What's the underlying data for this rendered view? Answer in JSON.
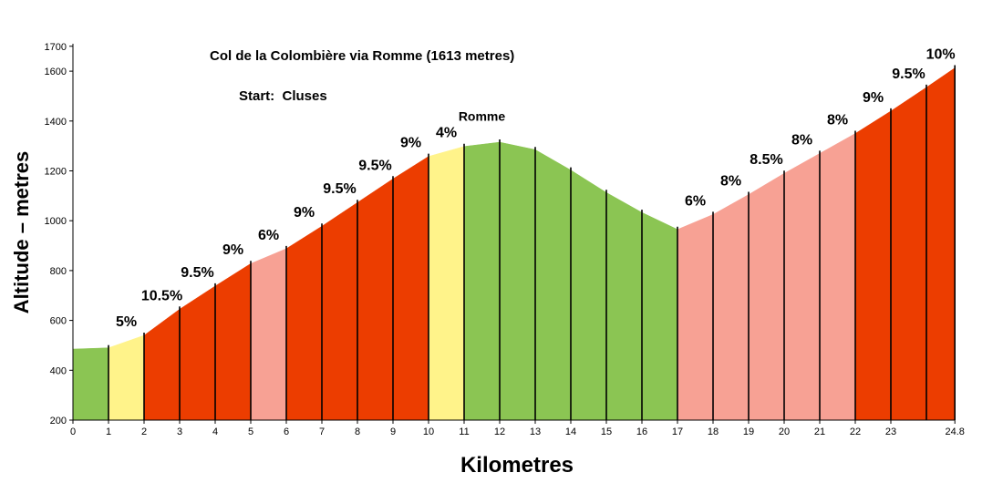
{
  "chart_data": {
    "type": "area",
    "title": "Col de la Colombière via Romme (1613 metres)",
    "subtitle": "Start:  Cluses",
    "xlabel": "Kilometres",
    "ylabel": "Altitude – metres",
    "ylim": [
      200,
      1700
    ],
    "xlim": [
      0,
      24.8
    ],
    "y_ticks": [
      200,
      400,
      600,
      800,
      1000,
      1200,
      1400,
      1600,
      1700
    ],
    "x_ticks": [
      {
        "value": 0,
        "label": "0"
      },
      {
        "value": 1,
        "label": "1"
      },
      {
        "value": 2,
        "label": "2"
      },
      {
        "value": 3,
        "label": "3"
      },
      {
        "value": 4,
        "label": "4"
      },
      {
        "value": 5,
        "label": "5"
      },
      {
        "value": 6,
        "label": "6"
      },
      {
        "value": 7,
        "label": "7"
      },
      {
        "value": 8,
        "label": "8"
      },
      {
        "value": 9,
        "label": "9"
      },
      {
        "value": 10,
        "label": "10"
      },
      {
        "value": 11,
        "label": "11"
      },
      {
        "value": 12,
        "label": "12"
      },
      {
        "value": 13,
        "label": "13"
      },
      {
        "value": 14,
        "label": "14"
      },
      {
        "value": 15,
        "label": "15"
      },
      {
        "value": 16,
        "label": "16"
      },
      {
        "value": 17,
        "label": "17"
      },
      {
        "value": 18,
        "label": "18"
      },
      {
        "value": 19,
        "label": "19"
      },
      {
        "value": 20,
        "label": "20"
      },
      {
        "value": 21,
        "label": "21"
      },
      {
        "value": 22,
        "label": "22"
      },
      {
        "value": 23,
        "label": "23"
      },
      {
        "value": 24.8,
        "label": "24.8"
      }
    ],
    "grid": false,
    "colors": {
      "green": "#8bc553",
      "yellow": "#fff38a",
      "pink": "#f7a194",
      "red": "#ec3d00"
    },
    "segments": [
      {
        "x0": 0,
        "x1": 1,
        "y0": 485,
        "y1": 490,
        "label": "",
        "color": "green"
      },
      {
        "x0": 1,
        "x1": 2,
        "y0": 490,
        "y1": 540,
        "label": "5%",
        "color": "yellow"
      },
      {
        "x0": 2,
        "x1": 3,
        "y0": 540,
        "y1": 645,
        "label": "10.5%",
        "color": "red"
      },
      {
        "x0": 3,
        "x1": 4,
        "y0": 645,
        "y1": 738,
        "label": "9.5%",
        "color": "red"
      },
      {
        "x0": 4,
        "x1": 5,
        "y0": 738,
        "y1": 828,
        "label": "9%",
        "color": "red"
      },
      {
        "x0": 5,
        "x1": 6,
        "y0": 828,
        "y1": 888,
        "label": "6%",
        "color": "pink"
      },
      {
        "x0": 6,
        "x1": 7,
        "y0": 888,
        "y1": 978,
        "label": "9%",
        "color": "red"
      },
      {
        "x0": 7,
        "x1": 8,
        "y0": 978,
        "y1": 1073,
        "label": "9.5%",
        "color": "red"
      },
      {
        "x0": 8,
        "x1": 9,
        "y0": 1073,
        "y1": 1168,
        "label": "9.5%",
        "color": "red"
      },
      {
        "x0": 9,
        "x1": 10,
        "y0": 1168,
        "y1": 1258,
        "label": "9%",
        "color": "red"
      },
      {
        "x0": 10,
        "x1": 11,
        "y0": 1258,
        "y1": 1298,
        "label": "4%",
        "color": "yellow"
      },
      {
        "x0": 11,
        "x1": 12,
        "y0": 1298,
        "y1": 1315,
        "label": "",
        "color": "green"
      },
      {
        "x0": 12,
        "x1": 13,
        "y0": 1315,
        "y1": 1285,
        "label": "",
        "color": "green"
      },
      {
        "x0": 13,
        "x1": 14,
        "y0": 1285,
        "y1": 1203,
        "label": "",
        "color": "green"
      },
      {
        "x0": 14,
        "x1": 15,
        "y0": 1203,
        "y1": 1113,
        "label": "",
        "color": "green"
      },
      {
        "x0": 15,
        "x1": 16,
        "y0": 1113,
        "y1": 1033,
        "label": "",
        "color": "green"
      },
      {
        "x0": 16,
        "x1": 17,
        "y0": 1033,
        "y1": 965,
        "label": "",
        "color": "green"
      },
      {
        "x0": 17,
        "x1": 18,
        "y0": 965,
        "y1": 1025,
        "label": "6%",
        "color": "pink"
      },
      {
        "x0": 18,
        "x1": 19,
        "y0": 1025,
        "y1": 1105,
        "label": "8%",
        "color": "pink"
      },
      {
        "x0": 19,
        "x1": 20,
        "y0": 1105,
        "y1": 1190,
        "label": "8.5%",
        "color": "pink"
      },
      {
        "x0": 20,
        "x1": 21,
        "y0": 1190,
        "y1": 1270,
        "label": "8%",
        "color": "pink"
      },
      {
        "x0": 21,
        "x1": 22,
        "y0": 1270,
        "y1": 1350,
        "label": "8%",
        "color": "pink"
      },
      {
        "x0": 22,
        "x1": 23,
        "y0": 1350,
        "y1": 1440,
        "label": "9%",
        "color": "red"
      },
      {
        "x0": 23,
        "x1": 24,
        "y0": 1440,
        "y1": 1535,
        "label": "9.5%",
        "color": "red"
      },
      {
        "x0": 24,
        "x1": 24.8,
        "y0": 1535,
        "y1": 1613,
        "label": "10%",
        "color": "red"
      }
    ],
    "annotations": [
      {
        "text": "Romme",
        "x": 11.5,
        "y": 1420
      }
    ]
  }
}
